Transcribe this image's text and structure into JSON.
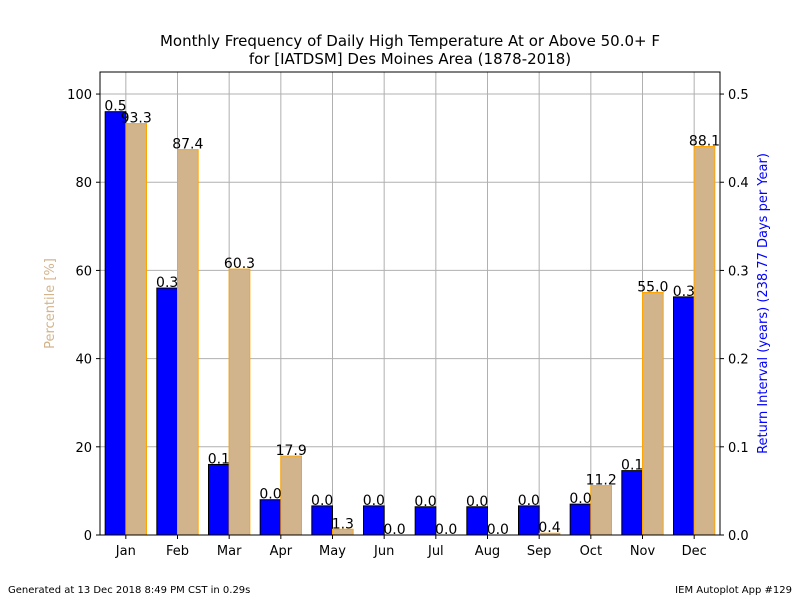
{
  "chart_data": {
    "type": "bar",
    "title_line1": "Monthly Frequency of Daily High Temperature At or Above 50.0+ F",
    "title_line2": "for [IATDSM] Des Moines Area (1878-2018)",
    "ylabel_left": "Percentile [%]",
    "ylabel_right": "Return Interval (years) (238.77 Days per Year)",
    "categories": [
      "Jan",
      "Feb",
      "Mar",
      "Apr",
      "May",
      "Jun",
      "Jul",
      "Aug",
      "Sep",
      "Oct",
      "Nov",
      "Dec"
    ],
    "series": [
      {
        "axis": "right",
        "color": "#0000ff",
        "values": [
          0.48,
          0.28,
          0.08,
          0.04,
          0.033,
          0.033,
          0.032,
          0.032,
          0.033,
          0.035,
          0.073,
          0.27
        ],
        "labels": [
          "0.5",
          "0.3",
          "0.1",
          "0.0",
          "0.0",
          "0.0",
          "0.0",
          "0.0",
          "0.0",
          "0.0",
          "0.1",
          "0.3"
        ]
      },
      {
        "axis": "left",
        "color": "#d2b48c",
        "edge_color": "#ffa500",
        "values": [
          93.3,
          87.4,
          60.3,
          17.9,
          1.3,
          0.0,
          0.0,
          0.0,
          0.4,
          11.2,
          55.0,
          88.1
        ],
        "labels": [
          "93.3",
          "87.4",
          "60.3",
          "17.9",
          "1.3",
          "0.0",
          "0.0",
          "0.0",
          "0.4",
          "11.2",
          "55.0",
          "88.1"
        ]
      }
    ],
    "ylim_left": [
      0,
      105
    ],
    "ylim_right": [
      0,
      0.525
    ],
    "yticks_left": [
      "0",
      "20",
      "40",
      "60",
      "80",
      "100"
    ],
    "yticks_right": [
      "0.0",
      "0.1",
      "0.2",
      "0.3",
      "0.4",
      "0.5"
    ],
    "grid": true
  },
  "footer": {
    "left": "Generated at 13 Dec 2018 8:49 PM CST in 0.29s",
    "right": "IEM Autoplot App #129"
  }
}
